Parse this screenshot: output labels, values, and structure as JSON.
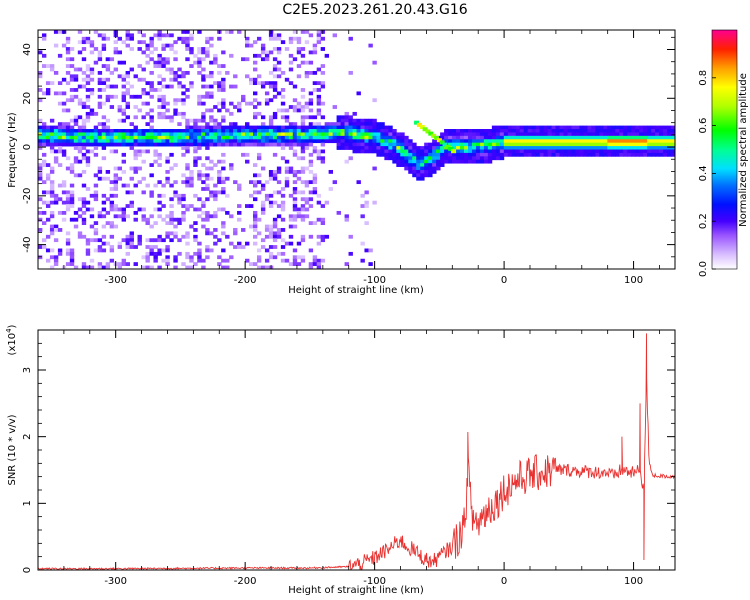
{
  "title": "C2E5.2023.261.20.43.G16",
  "chart_data": [
    {
      "type": "heatmap",
      "xlabel": "Height of straight line (km)",
      "ylabel": "Frequency (Hz)",
      "xlim": [
        -360,
        132
      ],
      "ylim": [
        -50,
        48
      ],
      "xticks": [
        -300,
        -200,
        -100,
        0,
        100
      ],
      "yticks": [
        40,
        20,
        0,
        -20,
        -40
      ],
      "colorbar": {
        "label": "Normalized spectral amplitude",
        "range": [
          0.0,
          1.0
        ],
        "ticks": [
          0.0,
          0.2,
          0.4,
          0.6,
          0.8
        ],
        "tick_labels": [
          "0.0",
          "0.2",
          "0.4",
          "0.6",
          "0.8"
        ],
        "colormap": [
          "#ffffff",
          "#e6d2ff",
          "#b27dff",
          "#7a2fff",
          "#3b00ff",
          "#0000ff",
          "#0060ff",
          "#00d0ff",
          "#00ffa0",
          "#00ff00",
          "#a8ff00",
          "#ffff00",
          "#ffa000",
          "#ff2000",
          "#ff0080"
        ]
      },
      "ridge": {
        "x": [
          -360,
          -330,
          -300,
          -250,
          -200,
          -150,
          -125,
          -100,
          -85,
          -75,
          -65,
          -55,
          -45,
          -35,
          -25,
          -10,
          0,
          20,
          50,
          80,
          100,
          110,
          132
        ],
        "freq": [
          5,
          4,
          4,
          4,
          5,
          5,
          6,
          4,
          1,
          -3,
          -7,
          -4,
          0,
          0,
          0,
          1,
          2,
          2,
          2,
          2,
          2,
          2,
          2
        ]
      }
    },
    {
      "type": "line",
      "xlabel": "Height of straight line (km)",
      "ylabel": "SNR (10 * v/v)",
      "yscale_note": "(x10",
      "yscale_exp": "4",
      "xlim": [
        -360,
        132
      ],
      "ylim": [
        0,
        3.6
      ],
      "xticks": [
        -300,
        -200,
        -100,
        0,
        100
      ],
      "yticks": [
        0,
        1,
        2,
        3
      ],
      "color": "#e8312f",
      "x": [
        -360,
        -300,
        -200,
        -150,
        -120,
        -110,
        -100,
        -95,
        -90,
        -85,
        -80,
        -75,
        -70,
        -65,
        -60,
        -55,
        -50,
        -45,
        -40,
        -35,
        -30,
        -28,
        -25,
        -20,
        -15,
        -10,
        -5,
        0,
        10,
        20,
        30,
        40,
        50,
        60,
        70,
        80,
        85,
        90,
        95,
        100,
        105,
        108,
        110,
        112,
        115,
        120,
        132
      ],
      "y": [
        0.02,
        0.02,
        0.03,
        0.03,
        0.05,
        0.1,
        0.18,
        0.25,
        0.3,
        0.38,
        0.45,
        0.35,
        0.3,
        0.22,
        0.15,
        0.12,
        0.2,
        0.28,
        0.35,
        0.5,
        0.7,
        1.6,
        0.8,
        0.7,
        0.85,
        0.95,
        1.05,
        1.2,
        1.35,
        1.43,
        1.47,
        1.5,
        1.5,
        1.48,
        1.47,
        1.46,
        1.4,
        1.5,
        1.48,
        1.45,
        1.5,
        1.2,
        2.9,
        1.6,
        1.42,
        1.41,
        1.4
      ],
      "spikes": [
        {
          "x": -28,
          "y": 2.07
        },
        {
          "x": 91,
          "y": 2.0
        },
        {
          "x": 105,
          "y": 2.5
        },
        {
          "x": 110,
          "y": 3.55
        },
        {
          "x": 108,
          "y": 0.15
        }
      ]
    }
  ]
}
